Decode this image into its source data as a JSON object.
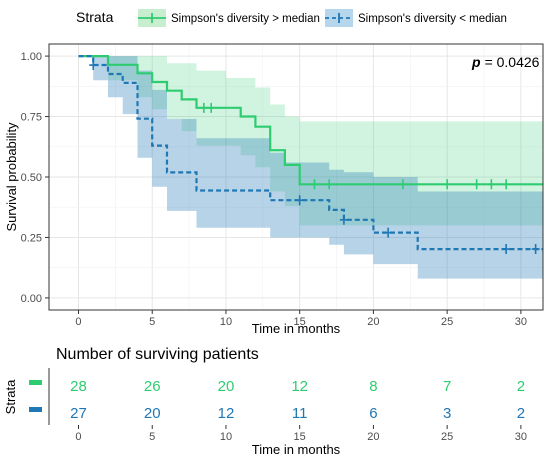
{
  "chart_data": [
    {
      "type": "line",
      "subtype": "kaplan-meier",
      "legend": {
        "title": "Strata",
        "position": "top",
        "entries": [
          "Simpson's diversity > median",
          "Simpson's diversity < median"
        ]
      },
      "annotation": {
        "p_label": "p",
        "p_value": "= 0.0426"
      },
      "xlabel": "Time in months",
      "ylabel": "Survival probability",
      "xlim": [
        -2,
        31.5
      ],
      "ylim": [
        -0.05,
        1.05
      ],
      "x_ticks": [
        0,
        5,
        10,
        15,
        20,
        25,
        30
      ],
      "y_ticks": [
        0.0,
        0.25,
        0.5,
        0.75,
        1.0
      ],
      "y_tick_labels": [
        "0.00",
        "0.25",
        "0.50",
        "0.75",
        "1.00"
      ],
      "grid": true,
      "series": [
        {
          "name": "Simpson's diversity > median",
          "color": "#2ecc71",
          "line_style": "solid",
          "steps": [
            [
              0,
              1.0
            ],
            [
              2,
              0.964
            ],
            [
              4,
              0.929
            ],
            [
              5,
              0.893
            ],
            [
              6,
              0.857
            ],
            [
              7,
              0.821
            ],
            [
              8,
              0.786
            ],
            [
              11,
              0.75
            ],
            [
              12,
              0.708
            ],
            [
              13,
              0.611
            ],
            [
              14,
              0.55
            ],
            [
              15,
              0.47
            ],
            [
              31.5,
              0.47
            ]
          ],
          "ci_upper": [
            [
              0,
              1.0
            ],
            [
              4,
              1.0
            ],
            [
              6,
              0.97
            ],
            [
              8,
              0.94
            ],
            [
              10,
              0.91
            ],
            [
              12,
              0.87
            ],
            [
              13,
              0.8
            ],
            [
              14,
              0.75
            ],
            [
              15,
              0.73
            ],
            [
              31.5,
              0.73
            ]
          ],
          "ci_lower": [
            [
              0,
              1.0
            ],
            [
              2,
              0.9
            ],
            [
              4,
              0.83
            ],
            [
              5,
              0.78
            ],
            [
              6,
              0.74
            ],
            [
              7,
              0.69
            ],
            [
              8,
              0.63
            ],
            [
              11,
              0.59
            ],
            [
              12,
              0.54
            ],
            [
              13,
              0.44
            ],
            [
              14,
              0.38
            ],
            [
              15,
              0.3
            ],
            [
              31.5,
              0.3
            ]
          ],
          "censored": [
            [
              8.5,
              0.786
            ],
            [
              9,
              0.786
            ],
            [
              16,
              0.47
            ],
            [
              17,
              0.47
            ],
            [
              22,
              0.47
            ],
            [
              25,
              0.47
            ],
            [
              27,
              0.47
            ],
            [
              28,
              0.47
            ],
            [
              29,
              0.47
            ]
          ]
        },
        {
          "name": "Simpson's diversity < median",
          "color": "#1f77b4",
          "line_style": "dashed",
          "steps": [
            [
              0,
              1.0
            ],
            [
              1,
              0.963
            ],
            [
              2,
              0.926
            ],
            [
              3,
              0.889
            ],
            [
              4,
              0.741
            ],
            [
              5,
              0.63
            ],
            [
              6,
              0.519
            ],
            [
              8,
              0.444
            ],
            [
              13,
              0.404
            ],
            [
              17,
              0.364
            ],
            [
              18,
              0.323
            ],
            [
              20,
              0.27
            ],
            [
              23,
              0.202
            ],
            [
              31.5,
              0.202
            ]
          ],
          "ci_upper": [
            [
              0,
              1.0
            ],
            [
              3,
              1.0
            ],
            [
              4,
              0.94
            ],
            [
              5,
              0.86
            ],
            [
              6,
              0.74
            ],
            [
              8,
              0.66
            ],
            [
              13,
              0.6
            ],
            [
              14,
              0.56
            ],
            [
              17,
              0.53
            ],
            [
              18,
              0.52
            ],
            [
              20,
              0.5
            ],
            [
              23,
              0.44
            ],
            [
              31.5,
              0.44
            ]
          ],
          "ci_lower": [
            [
              0,
              1.0
            ],
            [
              1,
              0.9
            ],
            [
              2,
              0.83
            ],
            [
              3,
              0.76
            ],
            [
              4,
              0.58
            ],
            [
              5,
              0.46
            ],
            [
              6,
              0.36
            ],
            [
              8,
              0.29
            ],
            [
              13,
              0.25
            ],
            [
              17,
              0.22
            ],
            [
              18,
              0.18
            ],
            [
              20,
              0.14
            ],
            [
              23,
              0.08
            ],
            [
              31.5,
              0.08
            ]
          ],
          "censored": [
            [
              1,
              0.963
            ],
            [
              15,
              0.404
            ],
            [
              18,
              0.323
            ],
            [
              21,
              0.27
            ],
            [
              29,
              0.202
            ],
            [
              31,
              0.202
            ]
          ]
        }
      ]
    },
    {
      "type": "table",
      "title": "Number of surviving patients",
      "ylabel": "Strata",
      "xlabel": "Time in months",
      "x_ticks": [
        0,
        5,
        10,
        15,
        20,
        25,
        30
      ],
      "rows": [
        {
          "name": "Simpson's diversity > median",
          "color": "#2ecc71",
          "values": [
            "28",
            "26",
            "20",
            "12",
            "8",
            "7",
            "2"
          ]
        },
        {
          "name": "Simpson's diversity < median",
          "color": "#1f77b4",
          "values": [
            "27",
            "20",
            "12",
            "11",
            "6",
            "3",
            "2"
          ]
        }
      ]
    }
  ]
}
